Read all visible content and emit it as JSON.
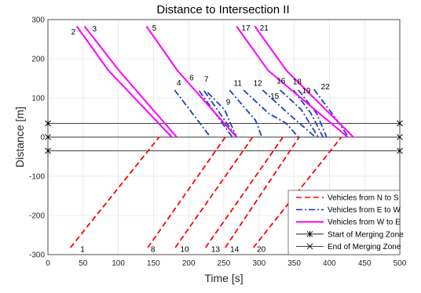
{
  "chart_data": {
    "type": "line",
    "title": "Distance to Intersection II",
    "xlabel": "Time [s]",
    "ylabel": "Distance [m]",
    "xlim": [
      0,
      500
    ],
    "ylim": [
      -300,
      300
    ],
    "xticks": [
      "0",
      "50",
      "100",
      "150",
      "200",
      "250",
      "300",
      "350",
      "400",
      "450",
      "500"
    ],
    "yticks": [
      "300",
      "200",
      "100",
      "0",
      "-100",
      "-200",
      "-300"
    ],
    "grid": true,
    "legend_position": "bottom-right",
    "zone_lines": [
      {
        "series": "start",
        "y": 35
      },
      {
        "series": "end",
        "y": 0
      },
      {
        "series": "start",
        "y": -35
      }
    ],
    "series": [
      {
        "name": "Vehicles from N to S",
        "color": "#ff0000",
        "style": "dashed",
        "vehicles": [
          {
            "id": "1",
            "points": [
              [
                32,
                -282
              ],
              [
                158,
                0
              ]
            ],
            "label_at": [
              46,
              -285
            ]
          },
          {
            "id": "8",
            "points": [
              [
                142,
                -282
              ],
              [
                252,
                0
              ]
            ],
            "label_at": [
              146,
              -285
            ]
          },
          {
            "id": "10",
            "points": [
              [
                181,
                -282
              ],
              [
                291,
                0
              ]
            ],
            "label_at": [
              188,
              -285
            ]
          },
          {
            "id": "13",
            "points": [
              [
                224,
                -282
              ],
              [
                334,
                0
              ]
            ],
            "label_at": [
              232,
              -285
            ]
          },
          {
            "id": "14",
            "points": [
              [
                252,
                -282
              ],
              [
                357,
                0
              ]
            ],
            "label_at": [
              259,
              -285
            ]
          },
          {
            "id": "20",
            "points": [
              [
                292,
                -282
              ],
              [
                417,
                0
              ]
            ],
            "label_at": [
              297,
              -285
            ]
          }
        ]
      },
      {
        "name": "Vehicles from E to W",
        "color": "#1f3fbf",
        "style": "dashdot",
        "vehicles": [
          {
            "id": "4",
            "points": [
              [
                180,
                120
              ],
              [
                231,
                0
              ]
            ],
            "label_at": [
              183,
              140
            ]
          },
          {
            "id": "6",
            "points": [
              [
                215,
                118
              ],
              [
                262,
                0
              ]
            ],
            "label_at": [
              201,
              153
            ]
          },
          {
            "id": "7",
            "points": [
              [
                222,
                118
              ],
              [
                268,
                0
              ]
            ],
            "label_at": [
              222,
              149
            ]
          },
          {
            "id": "9",
            "points": [
              [
                227,
                114
              ],
              [
                251,
                70
              ],
              [
                268,
                0
              ]
            ],
            "label_at": [
              253,
              91
            ]
          },
          {
            "id": "11",
            "points": [
              [
                258,
                120
              ],
              [
                282,
                70
              ],
              [
                295,
                43
              ],
              [
                304,
                0
              ]
            ],
            "label_at": [
              264,
              139
            ]
          },
          {
            "id": "12",
            "points": [
              [
                278,
                120
              ],
              [
                314,
                60
              ],
              [
                338,
                36
              ],
              [
                356,
                0
              ]
            ],
            "label_at": [
              292,
              139
            ]
          },
          {
            "id": "15",
            "points": [
              [
                305,
                120
              ],
              [
                343,
                58
              ],
              [
                380,
                0
              ]
            ],
            "label_at": [
              316,
              106
            ]
          },
          {
            "id": "16",
            "points": [
              [
                330,
                120
              ],
              [
                360,
                70
              ],
              [
                384,
                0
              ]
            ],
            "label_at": [
              325,
              145
            ]
          },
          {
            "id": "18",
            "points": [
              [
                349,
                120
              ],
              [
                374,
                60
              ],
              [
                391,
                0
              ]
            ],
            "label_at": [
              348,
              143
            ]
          },
          {
            "id": "19",
            "points": [
              [
                356,
                120
              ],
              [
                382,
                60
              ],
              [
                396,
                0
              ]
            ],
            "label_at": [
              361,
              120
            ]
          },
          {
            "id": "22",
            "points": [
              [
                378,
                122
              ],
              [
                412,
                40
              ],
              [
                427,
                0
              ]
            ],
            "label_at": [
              388,
              130
            ]
          }
        ]
      },
      {
        "name": "Vehicles from W to E",
        "color": "#ff00ff",
        "style": "solid",
        "vehicles": [
          {
            "id": "2",
            "points": [
              [
                41,
                283
              ],
              [
                86,
                170
              ],
              [
                176,
                0
              ]
            ],
            "label_at": [
              33,
              270
            ]
          },
          {
            "id": "3",
            "points": [
              [
                52,
                283
              ],
              [
                101,
                170
              ],
              [
                183,
                0
              ]
            ],
            "label_at": [
              63,
              278
            ]
          },
          {
            "id": "5",
            "points": [
              [
                140,
                283
              ],
              [
                184,
                170
              ],
              [
                268,
                0
              ]
            ],
            "label_at": [
              148,
              280
            ]
          },
          {
            "id": "17",
            "points": [
              [
                268,
                283
              ],
              [
                313,
                170
              ],
              [
                426,
                0
              ]
            ],
            "label_at": [
              275,
              280
            ]
          },
          {
            "id": "21",
            "points": [
              [
                294,
                283
              ],
              [
                339,
                170
              ],
              [
                434,
                0
              ]
            ],
            "label_at": [
              301,
              280
            ]
          }
        ]
      },
      {
        "name": "Start of Merging Zone",
        "color": "#000000",
        "style": "solid-star"
      },
      {
        "name": "End of Merging Zone",
        "color": "#000000",
        "style": "solid-x"
      }
    ]
  }
}
